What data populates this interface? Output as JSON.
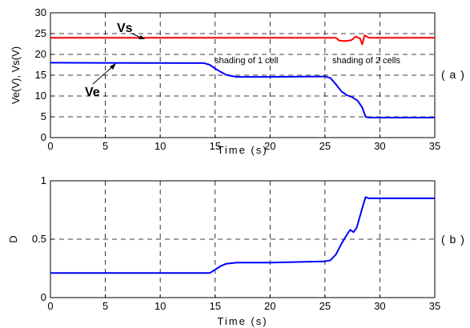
{
  "chart_data": [
    {
      "type": "line",
      "panel_label": "( a )",
      "xlabel": "Time (s)",
      "ylabel": "Ve(V),   Vs(V)",
      "xlim": [
        0,
        35
      ],
      "ylim": [
        0,
        30
      ],
      "xticks": [
        "0",
        "5",
        "10",
        "15",
        "20",
        "25",
        "30",
        "35"
      ],
      "yticks": [
        "0",
        "5",
        "10",
        "15",
        "20",
        "25",
        "30"
      ],
      "grid": true,
      "series": [
        {
          "name": "Vs",
          "color": "#ff0000",
          "x": [
            0,
            26.0,
            26.3,
            26.8,
            27.4,
            27.8,
            28.2,
            28.4,
            28.6,
            28.8,
            29.0,
            35
          ],
          "y": [
            24,
            24,
            23.3,
            23.2,
            23.4,
            24.3,
            23.8,
            22.4,
            24.6,
            24.3,
            24,
            24
          ]
        },
        {
          "name": "Ve",
          "color": "#0000ff",
          "x": [
            0,
            14.0,
            14.5,
            15.0,
            15.5,
            16.0,
            16.5,
            17.0,
            20,
            25.0,
            25.5,
            26.0,
            26.5,
            27.0,
            27.5,
            28.0,
            28.4,
            28.7,
            29.0,
            35
          ],
          "y": [
            18,
            17.9,
            17.5,
            16.6,
            15.8,
            15.1,
            14.8,
            14.6,
            14.6,
            14.7,
            14.3,
            12.8,
            11.1,
            10.2,
            9.7,
            8.8,
            7.2,
            5.0,
            4.8,
            4.8
          ]
        }
      ],
      "annotations": [
        "Vs",
        "Ve",
        "shading of 1 cell",
        "shading of 2 cells"
      ]
    },
    {
      "type": "line",
      "panel_label": "( b )",
      "xlabel": "Time (s)",
      "ylabel": "D",
      "xlim": [
        0,
        35
      ],
      "ylim": [
        0,
        1
      ],
      "xticks": [
        "0",
        "5",
        "10",
        "15",
        "20",
        "25",
        "30",
        "35"
      ],
      "yticks": [
        "0",
        "0.5",
        "1"
      ],
      "grid": true,
      "series": [
        {
          "color": "#0000ff",
          "x": [
            0,
            14.5,
            15.0,
            15.5,
            16.0,
            17.0,
            20,
            25.0,
            25.5,
            26.0,
            26.5,
            27.0,
            27.3,
            27.6,
            27.9,
            28.2,
            28.5,
            28.7,
            29.0,
            35
          ],
          "y": [
            0.21,
            0.21,
            0.24,
            0.27,
            0.29,
            0.3,
            0.3,
            0.31,
            0.32,
            0.37,
            0.46,
            0.54,
            0.58,
            0.56,
            0.6,
            0.7,
            0.8,
            0.86,
            0.85,
            0.85
          ]
        }
      ]
    }
  ]
}
